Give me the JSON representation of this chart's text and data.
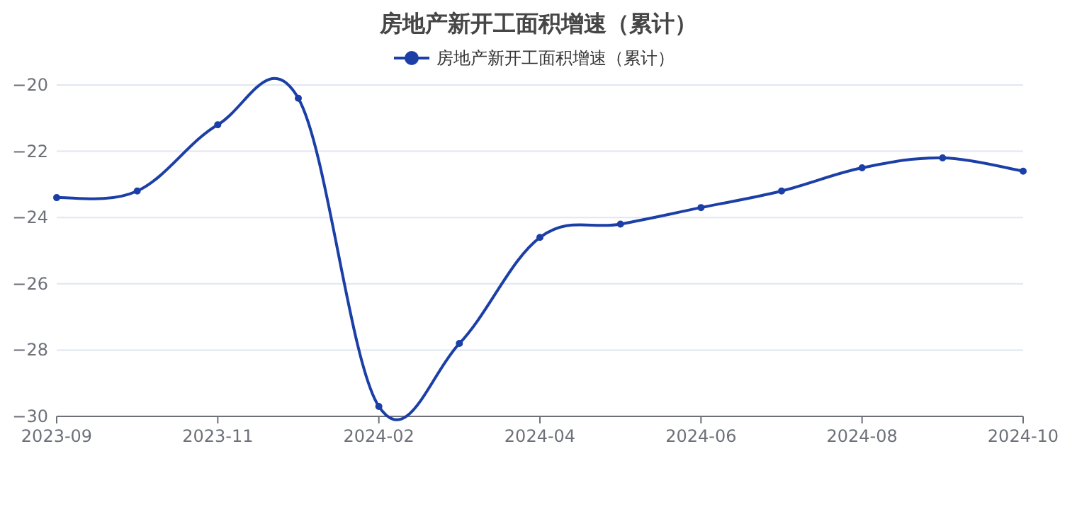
{
  "chart_data": {
    "type": "line",
    "title": "房地产新开工面积增速（累计）",
    "categories": [
      "2023-09",
      null,
      "2023-11",
      null,
      "2024-02",
      null,
      "2024-04",
      null,
      "2024-06",
      null,
      "2024-08",
      null,
      "2024-10"
    ],
    "series": [
      {
        "name": "房地产新开工面积增速（累计）",
        "color": "#1b3fa6",
        "values": [
          -23.4,
          -23.2,
          -21.2,
          -20.4,
          -29.7,
          -27.8,
          -24.6,
          -24.2,
          -23.7,
          -23.2,
          -22.5,
          -22.2,
          -22.6
        ]
      }
    ],
    "ylim": [
      -30,
      -20
    ],
    "yticks": [
      -30,
      -28,
      -26,
      -24,
      -22,
      -20
    ],
    "grid": "y",
    "legend": "top",
    "marker": "circle",
    "line_style": "solid"
  }
}
